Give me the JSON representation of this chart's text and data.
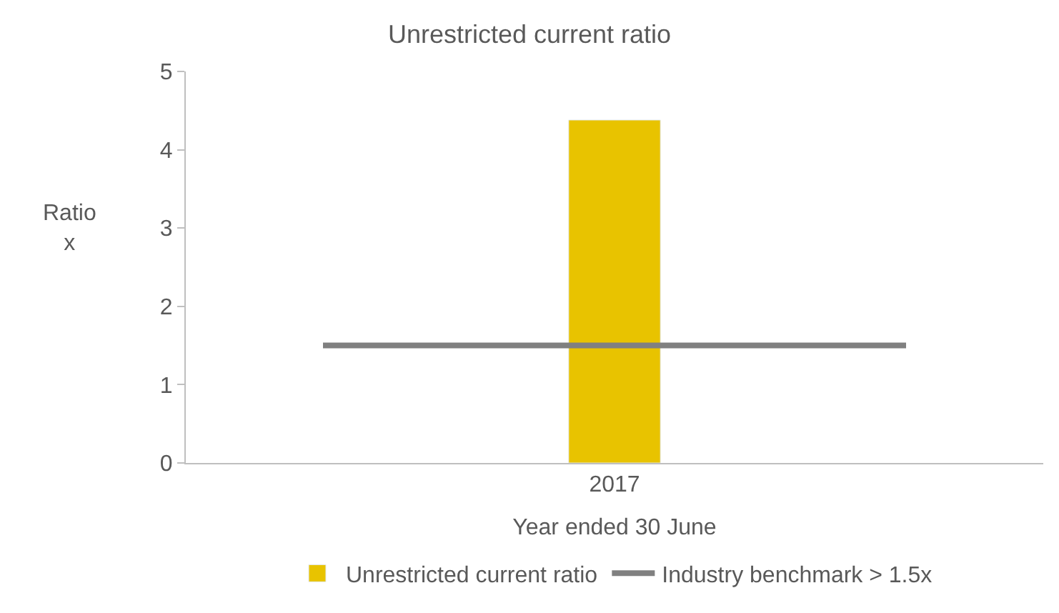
{
  "chart_data": {
    "type": "bar",
    "title": "Unrestricted current ratio",
    "xlabel": "Year ended 30 June",
    "ylabel": "Ratio\nx",
    "categories": [
      "2017"
    ],
    "series": [
      {
        "name": "Unrestricted current ratio",
        "color": "#e8c300",
        "values": [
          4.38
        ]
      }
    ],
    "ref_lines": [
      {
        "axis": "y",
        "value": 1.5,
        "label": "Industry benchmark > 1.5x",
        "color": "#808080"
      }
    ],
    "ylim": [
      0,
      5
    ],
    "yticks": [
      0,
      1,
      2,
      3,
      4,
      5
    ],
    "legend": "bottom"
  }
}
